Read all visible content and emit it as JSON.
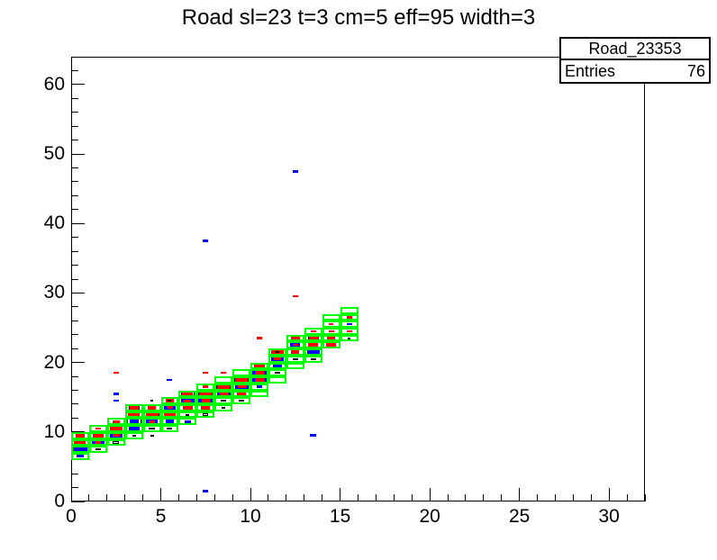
{
  "title": "Road sl=23 t=3 cm=5 eff=95 width=3",
  "stats": {
    "name": "Road_23353",
    "entries_label": "Entries",
    "entries_value": "76"
  },
  "chart_data": {
    "type": "heatmap",
    "title": "Road sl=23 t=3 cm=5 eff=95 width=3",
    "xlabel": "",
    "ylabel": "",
    "xlim": [
      0,
      32
    ],
    "ylim": [
      0,
      64
    ],
    "grid": false,
    "legend": "none",
    "x_major_ticks": [
      0,
      5,
      10,
      15,
      20,
      25,
      30
    ],
    "x_minor_step": 1,
    "y_major_ticks": [
      0,
      10,
      20,
      30,
      40,
      50,
      60
    ],
    "y_minor_step": 2,
    "colors": {
      "road_outline": "#00ff00",
      "r": "#ff0000",
      "b": "#0000ff",
      "k": "#000000",
      "w": "#ffffff",
      "frame": "#000000",
      "background": "#ffffff"
    },
    "road_columns": [
      {
        "x": 0,
        "y1": 6,
        "y2": 9
      },
      {
        "x": 1,
        "y1": 7,
        "y2": 10
      },
      {
        "x": 2,
        "y1": 8,
        "y2": 11
      },
      {
        "x": 3,
        "y1": 9,
        "y2": 13
      },
      {
        "x": 4,
        "y1": 10,
        "y2": 13
      },
      {
        "x": 5,
        "y1": 10,
        "y2": 14
      },
      {
        "x": 6,
        "y1": 11,
        "y2": 15
      },
      {
        "x": 7,
        "y1": 12,
        "y2": 16
      },
      {
        "x": 8,
        "y1": 13,
        "y2": 17
      },
      {
        "x": 9,
        "y1": 14,
        "y2": 18
      },
      {
        "x": 10,
        "y1": 15,
        "y2": 19
      },
      {
        "x": 11,
        "y1": 17,
        "y2": 21
      },
      {
        "x": 12,
        "y1": 19,
        "y2": 23
      },
      {
        "x": 13,
        "y1": 20,
        "y2": 24
      },
      {
        "x": 14,
        "y1": 22,
        "y2": 26
      },
      {
        "x": 15,
        "y1": 23,
        "y2": 27
      }
    ],
    "boxes": [
      [
        0,
        9,
        "r",
        0.5
      ],
      [
        0,
        8,
        "r",
        0.65
      ],
      [
        0,
        7,
        "b",
        0.8
      ],
      [
        0,
        6,
        "b",
        0.4
      ],
      [
        1,
        10,
        "r",
        0.28
      ],
      [
        1,
        9,
        "r",
        0.6
      ],
      [
        1,
        8,
        "b",
        0.7
      ],
      [
        1,
        8,
        "r",
        0.35
      ],
      [
        1,
        7,
        "w",
        0.33
      ],
      [
        2,
        11,
        "r",
        0.4
      ],
      [
        2,
        10,
        "r",
        0.68
      ],
      [
        2,
        9,
        "b",
        0.7
      ],
      [
        2,
        9,
        "r",
        0.4
      ],
      [
        2,
        8,
        "w",
        0.33
      ],
      [
        2,
        18,
        "r",
        0.3
      ],
      [
        2,
        15,
        "b",
        0.3
      ],
      [
        2,
        14,
        "b",
        0.3
      ],
      [
        3,
        13,
        "r",
        0.5
      ],
      [
        3,
        13,
        "k",
        0.62
      ],
      [
        3,
        12,
        "r",
        0.68
      ],
      [
        3,
        11,
        "w",
        0.8
      ],
      [
        3,
        11,
        "b",
        0.5
      ],
      [
        3,
        10,
        "b",
        0.6
      ],
      [
        3,
        9,
        "k",
        0.2
      ],
      [
        4,
        14,
        "k",
        0.18
      ],
      [
        4,
        13,
        "r",
        0.45
      ],
      [
        4,
        12,
        "r",
        0.7
      ],
      [
        4,
        12,
        "k",
        0.82
      ],
      [
        4,
        11,
        "b",
        0.65
      ],
      [
        4,
        11,
        "r",
        0.35
      ],
      [
        4,
        10,
        "w",
        0.33
      ],
      [
        4,
        9,
        "k",
        0.2
      ],
      [
        5,
        14,
        "k",
        0.2
      ],
      [
        5,
        14,
        "r",
        0.45
      ],
      [
        5,
        13,
        "b",
        0.7
      ],
      [
        5,
        13,
        "r",
        0.4
      ],
      [
        5,
        12,
        "r",
        0.7
      ],
      [
        5,
        11,
        "b",
        0.5
      ],
      [
        5,
        10,
        "w",
        0.3
      ],
      [
        5,
        17,
        "b",
        0.3
      ],
      [
        6,
        15,
        "r",
        0.6
      ],
      [
        6,
        15,
        "k",
        0.72
      ],
      [
        6,
        14,
        "b",
        0.75
      ],
      [
        6,
        14,
        "r",
        0.4
      ],
      [
        6,
        13,
        "r",
        0.55
      ],
      [
        6,
        12,
        "k",
        0.2
      ],
      [
        6,
        11,
        "b",
        0.35
      ],
      [
        7,
        16,
        "r",
        0.3
      ],
      [
        7,
        15,
        "r",
        0.7
      ],
      [
        7,
        15,
        "k",
        0.8
      ],
      [
        7,
        14,
        "b",
        0.8
      ],
      [
        7,
        14,
        "r",
        0.45
      ],
      [
        7,
        13,
        "r",
        0.5
      ],
      [
        7,
        12,
        "w",
        0.3
      ],
      [
        7,
        18,
        "r",
        0.3
      ],
      [
        7,
        37,
        "b",
        0.3
      ],
      [
        7,
        1,
        "b",
        0.3
      ],
      [
        8,
        16,
        "r",
        0.72
      ],
      [
        8,
        16,
        "k",
        0.8
      ],
      [
        8,
        15,
        "b",
        0.75
      ],
      [
        8,
        15,
        "r",
        0.45
      ],
      [
        8,
        14,
        "w",
        0.3
      ],
      [
        8,
        13,
        "k",
        0.2
      ],
      [
        8,
        18,
        "r",
        0.3
      ],
      [
        9,
        17,
        "r",
        0.7
      ],
      [
        9,
        17,
        "k",
        0.8
      ],
      [
        9,
        16,
        "b",
        0.75
      ],
      [
        9,
        16,
        "r",
        0.45
      ],
      [
        9,
        15,
        "r",
        0.5
      ],
      [
        9,
        14,
        "w",
        0.3
      ],
      [
        10,
        19,
        "r",
        0.6
      ],
      [
        10,
        18,
        "b",
        0.85
      ],
      [
        10,
        18,
        "r",
        0.55
      ],
      [
        10,
        17,
        "b",
        0.8
      ],
      [
        10,
        17,
        "r",
        0.5
      ],
      [
        10,
        16,
        "b",
        0.3
      ],
      [
        10,
        23,
        "r",
        0.3
      ],
      [
        11,
        21,
        "r",
        0.7
      ],
      [
        11,
        21,
        "w",
        0.25
      ],
      [
        11,
        20,
        "b",
        0.7
      ],
      [
        11,
        20,
        "r",
        0.4
      ],
      [
        11,
        19,
        "b",
        0.5
      ],
      [
        11,
        18,
        "w",
        0.3
      ],
      [
        12,
        23,
        "r",
        0.5
      ],
      [
        12,
        22,
        "b",
        0.55
      ],
      [
        12,
        22,
        "r",
        0.3
      ],
      [
        12,
        21,
        "r",
        0.45
      ],
      [
        12,
        20,
        "w",
        0.3
      ],
      [
        12,
        29,
        "r",
        0.3
      ],
      [
        12,
        47,
        "b",
        0.33
      ],
      [
        13,
        24,
        "r",
        0.3
      ],
      [
        13,
        23,
        "r",
        0.5
      ],
      [
        13,
        23,
        "k",
        0.6
      ],
      [
        13,
        22,
        "r",
        0.55
      ],
      [
        13,
        21,
        "b",
        0.7
      ],
      [
        13,
        20,
        "w",
        0.28
      ],
      [
        13,
        9,
        "b",
        0.33
      ],
      [
        14,
        25,
        "r",
        0.28
      ],
      [
        14,
        24,
        "r",
        0.3
      ],
      [
        14,
        23,
        "r",
        0.45
      ],
      [
        14,
        22,
        "r",
        0.55
      ],
      [
        15,
        26,
        "r",
        0.3
      ],
      [
        15,
        25,
        "b",
        0.3
      ],
      [
        15,
        24,
        "r",
        0.3
      ],
      [
        15,
        23,
        "k",
        0.18
      ]
    ]
  }
}
